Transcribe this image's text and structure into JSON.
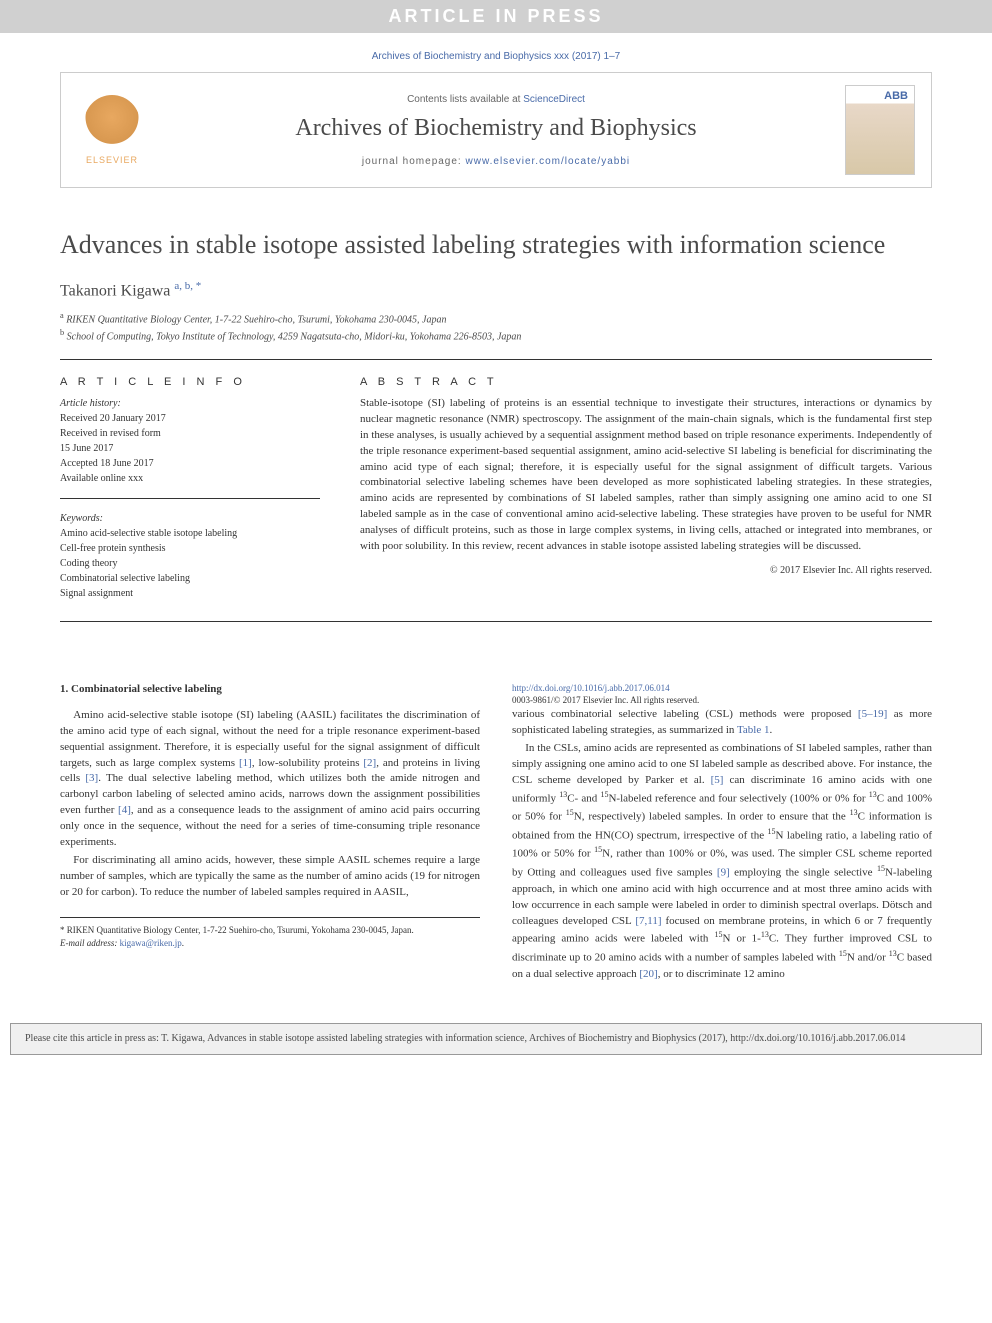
{
  "banner": "ARTICLE IN PRESS",
  "citation_header": "Archives of Biochemistry and Biophysics xxx (2017) 1–7",
  "journal_box": {
    "publisher_logo_text": "ELSEVIER",
    "contents_prefix": "Contents lists available at ",
    "contents_link": "ScienceDirect",
    "journal_name": "Archives of Biochemistry and Biophysics",
    "homepage_prefix": "journal homepage: ",
    "homepage_link": "www.elsevier.com/locate/yabbi",
    "cover_label": "ABB"
  },
  "title": "Advances in stable isotope assisted labeling strategies with information science",
  "author": {
    "name": "Takanori Kigawa",
    "markers": "a, b, *"
  },
  "affiliations": {
    "a": "RIKEN Quantitative Biology Center, 1-7-22 Suehiro-cho, Tsurumi, Yokohama 230-0045, Japan",
    "b": "School of Computing, Tokyo Institute of Technology, 4259 Nagatsuta-cho, Midori-ku, Yokohama 226-8503, Japan"
  },
  "article_info": {
    "label": "A R T I C L E  I N F O",
    "history_label": "Article history:",
    "history": [
      "Received 20 January 2017",
      "Received in revised form",
      "15 June 2017",
      "Accepted 18 June 2017",
      "Available online xxx"
    ],
    "keywords_label": "Keywords:",
    "keywords": [
      "Amino acid-selective stable isotope labeling",
      "Cell-free protein synthesis",
      "Coding theory",
      "Combinatorial selective labeling",
      "Signal assignment"
    ]
  },
  "abstract": {
    "label": "A B S T R A C T",
    "text": "Stable-isotope (SI) labeling of proteins is an essential technique to investigate their structures, interactions or dynamics by nuclear magnetic resonance (NMR) spectroscopy. The assignment of the main-chain signals, which is the fundamental first step in these analyses, is usually achieved by a sequential assignment method based on triple resonance experiments. Independently of the triple resonance experiment-based sequential assignment, amino acid-selective SI labeling is beneficial for discriminating the amino acid type of each signal; therefore, it is especially useful for the signal assignment of difficult targets. Various combinatorial selective labeling schemes have been developed as more sophisticated labeling strategies. In these strategies, amino acids are represented by combinations of SI labeled samples, rather than simply assigning one amino acid to one SI labeled sample as in the case of conventional amino acid-selective labeling. These strategies have proven to be useful for NMR analyses of difficult proteins, such as those in large complex systems, in living cells, attached or integrated into membranes, or with poor solubility. In this review, recent advances in stable isotope assisted labeling strategies will be discussed.",
    "copyright": "© 2017 Elsevier Inc. All rights reserved."
  },
  "body": {
    "section_number": "1.",
    "section_title": "Combinatorial selective labeling",
    "para1_a": "Amino acid-selective stable isotope (SI) labeling (AASIL) facilitates the discrimination of the amino acid type of each signal, without the need for a triple resonance experiment-based sequential assignment. Therefore, it is especially useful for the signal assignment of difficult targets, such as large complex systems ",
    "ref1": "[1]",
    "para1_b": ", low-solubility proteins ",
    "ref2": "[2]",
    "para1_c": ", and proteins in living cells ",
    "ref3": "[3]",
    "para1_d": ". The dual selective labeling method, which utilizes both the amide nitrogen and carbonyl carbon labeling of selected amino acids, narrows down the assignment possibilities even further ",
    "ref4": "[4]",
    "para1_e": ", and as a consequence leads to the assignment of amino acid pairs occurring only once in the sequence, without the need for a series of time-consuming triple resonance experiments.",
    "para2": "For discriminating all amino acids, however, these simple AASIL schemes require a large number of samples, which are typically the same as the number of amino acids (19 for nitrogen or 20 for carbon). To reduce the number of labeled samples required in AASIL,",
    "para3_a": "various combinatorial selective labeling (CSL) methods were proposed ",
    "ref5_19": "[5–19]",
    "para3_b": " as more sophisticated labeling strategies, as summarized in ",
    "table1": "Table 1",
    "para3_c": ".",
    "para4_a": "In the CSLs, amino acids are represented as combinations of SI labeled samples, rather than simply assigning one amino acid to one SI labeled sample as described above. For instance, the CSL scheme developed by Parker et al. ",
    "ref5": "[5]",
    "para4_b": " can discriminate 16 amino acids with one uniformly ",
    "c13": "13",
    "para4_c": "C- and ",
    "n15": "15",
    "para4_d": "N-labeled reference and four selectively (100% or 0% for ",
    "para4_e": "C and 100% or 50% for ",
    "para4_f": "N, respectively) labeled samples. In order to ensure that the ",
    "para4_g": "C information is obtained from the HN(CO) spectrum, irrespective of the ",
    "para4_h": "N labeling ratio, a labeling ratio of 100% or 50% for ",
    "para4_i": "N, rather than 100% or 0%, was used. The simpler CSL scheme reported by Otting and colleagues used five samples ",
    "ref9": "[9]",
    "para4_j": " employing the single selective ",
    "para4_k": "N-labeling approach, in which one amino acid with high occurrence and at most three amino acids with low occurrence in each sample were labeled in order to diminish spectral overlaps. Dötsch and colleagues developed CSL ",
    "ref7_11": "[7,11]",
    "para4_l": " focused on membrane proteins, in which 6 or 7 frequently appearing amino acids were labeled with ",
    "para4_m": "N or 1-",
    "para4_n": "C. They further improved CSL to discriminate up to 20 amino acids with a number of samples labeled with ",
    "para4_o": "N and/or ",
    "para4_p": "C based on a dual selective approach ",
    "ref20": "[20]",
    "para4_q": ", or to discriminate 12 amino"
  },
  "footnote": {
    "corr": "* RIKEN Quantitative Biology Center, 1-7-22 Suehiro-cho, Tsurumi, Yokohama 230-0045, Japan.",
    "email_label": "E-mail address: ",
    "email": "kigawa@riken.jp",
    "email_suffix": "."
  },
  "doi": {
    "link": "http://dx.doi.org/10.1016/j.abb.2017.06.014",
    "issn_line": "0003-9861/© 2017 Elsevier Inc. All rights reserved."
  },
  "cite_box": "Please cite this article in press as: T. Kigawa, Advances in stable isotope assisted labeling strategies with information science, Archives of Biochemistry and Biophysics (2017), http://dx.doi.org/10.1016/j.abb.2017.06.014",
  "colors": {
    "link": "#486aa8",
    "banner_bg": "#d0d0d0",
    "text": "#333333",
    "citebox_bg": "#f0f0f0"
  }
}
